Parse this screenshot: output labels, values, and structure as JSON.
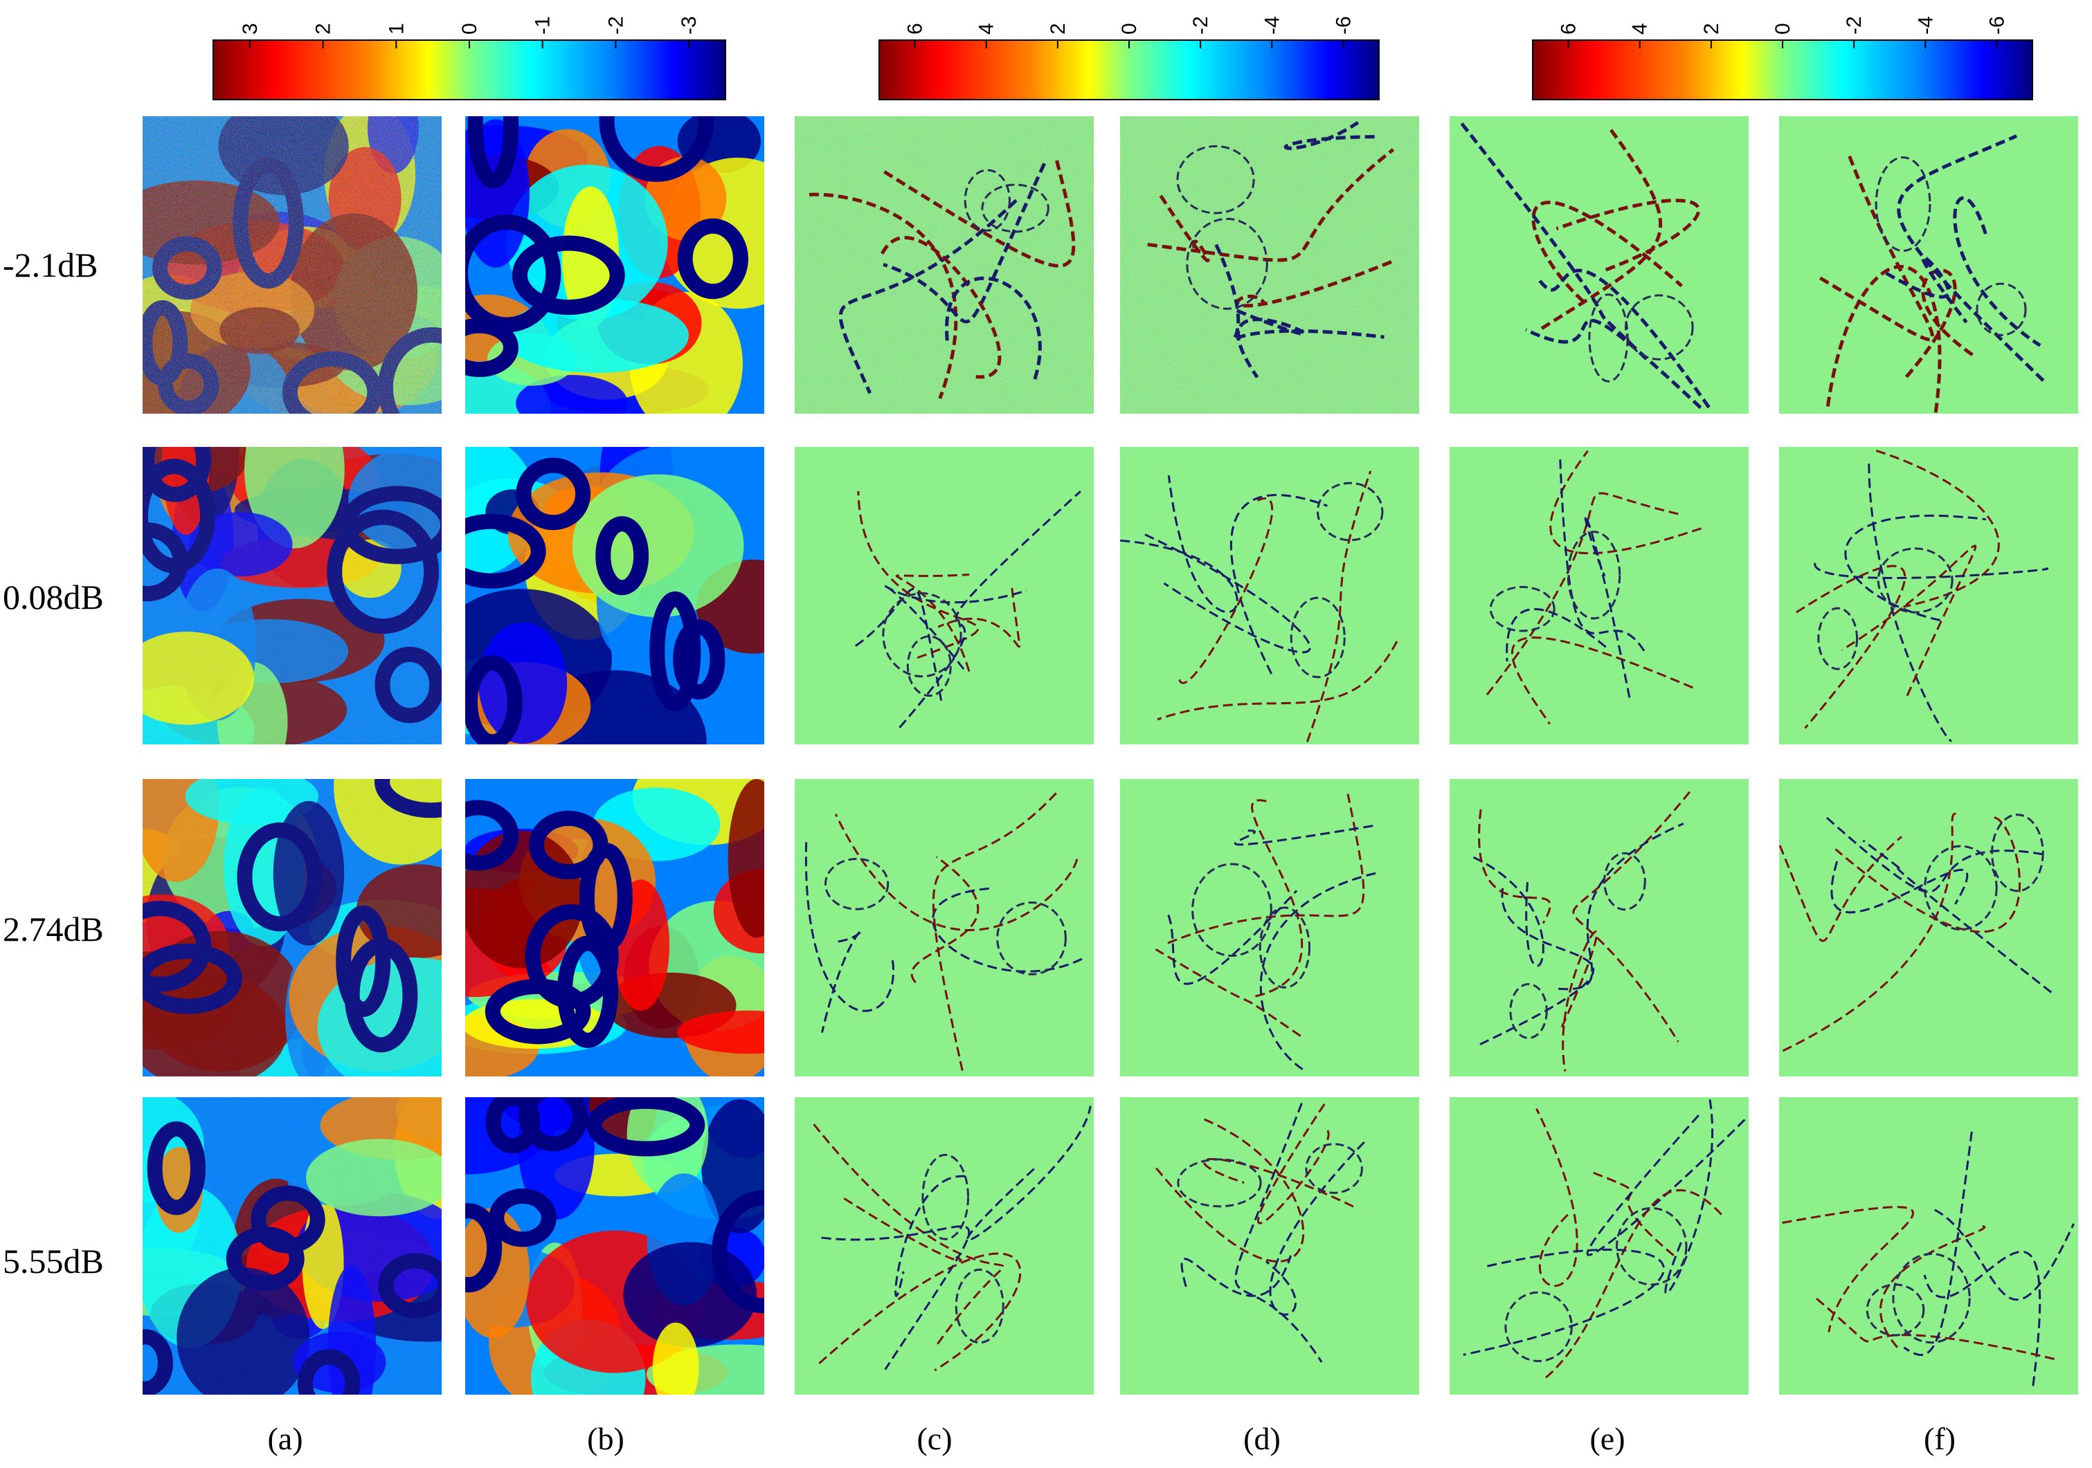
{
  "figure": {
    "colorbars": [
      {
        "ticks": [
          "3",
          "2",
          "1",
          "0",
          "-1",
          "-2",
          "-3"
        ]
      },
      {
        "ticks": [
          "6",
          "4",
          "2",
          "0",
          "-2",
          "-4",
          "-6"
        ]
      },
      {
        "ticks": [
          "6",
          "4",
          "2",
          "0",
          "-2",
          "-4",
          "-6"
        ]
      }
    ],
    "row_labels": [
      "-2.1dB",
      "0.08dB",
      "2.74dB",
      "5.55dB"
    ],
    "column_labels": [
      "(a)",
      "(b)",
      "(c)",
      "(d)",
      "(e)",
      "(f)"
    ],
    "colors": {
      "colormap": [
        "#800000",
        "#ff0000",
        "#ff8000",
        "#ffff00",
        "#80ff80",
        "#00ffff",
        "#0080ff",
        "#0000ff",
        "#000080"
      ],
      "error_background": "#8ef08a",
      "background": "#ffffff"
    }
  }
}
